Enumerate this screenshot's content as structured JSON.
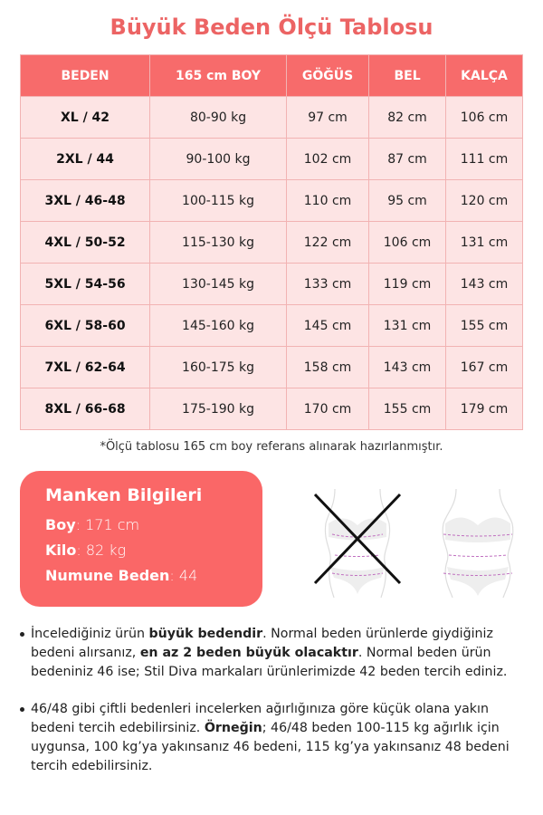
{
  "title": "Büyük Beden Ölçü Tablosu",
  "table": {
    "headers": [
      "BEDEN",
      "165 cm BOY",
      "GÖĞÜS",
      "BEL",
      "KALÇA"
    ],
    "rows": [
      [
        "XL / 42",
        "80-90 kg",
        "97 cm",
        "82 cm",
        "106 cm"
      ],
      [
        "2XL / 44",
        "90-100 kg",
        "102 cm",
        "87 cm",
        "111 cm"
      ],
      [
        "3XL / 46-48",
        "100-115 kg",
        "110 cm",
        "95 cm",
        "120 cm"
      ],
      [
        "4XL / 50-52",
        "115-130 kg",
        "122 cm",
        "106 cm",
        "131 cm"
      ],
      [
        "5XL / 54-56",
        "130-145 kg",
        "133 cm",
        "119 cm",
        "143 cm"
      ],
      [
        "6XL / 58-60",
        "145-160 kg",
        "145 cm",
        "131 cm",
        "155 cm"
      ],
      [
        "7XL / 62-64",
        "160-175 kg",
        "158 cm",
        "143 cm",
        "167 cm"
      ],
      [
        "8XL / 66-68",
        "175-190 kg",
        "170 cm",
        "155 cm",
        "179 cm"
      ]
    ]
  },
  "note": "*Ölçü tablosu 165 cm boy referans alınarak hazırlanmıştır.",
  "model": {
    "title": "Manken Bilgileri",
    "boy_label": "Boy",
    "boy": ": 171 cm",
    "kilo_label": "Kilo",
    "kilo": ": 82 kg",
    "beden_label": "Numune Beden",
    "beden": ": 44"
  },
  "bullets": [
    {
      "parts": [
        [
          "İncelediğiniz ürün ",
          false
        ],
        [
          "büyük bedendir",
          true
        ],
        [
          ". Normal beden ürünlerde giydiğiniz bedeni alırsanız, ",
          false
        ],
        [
          "en az 2 beden büyük olacaktır",
          true
        ],
        [
          ". Normal beden ürün bedeniniz 46 ise; Stil Diva markaları ürünlerimizde 42 beden tercih ediniz.",
          false
        ]
      ]
    },
    {
      "parts": [
        [
          "46/48 gibi çiftli bedenleri incelerken ağırlığınıza göre küçük olana yakın bedeni tercih edebilirsiniz. ",
          false
        ],
        [
          "Örneğin",
          true
        ],
        [
          "; 46/48 beden 100-115 kg ağırlık için uygunsa, 100 kg’ya yakınsanız 46 bedeni, 115 kg’ya yakınsanız 48 bedeni tercih edebilirsiniz.",
          false
        ]
      ]
    }
  ],
  "colors": {
    "accent": "#f76b6b",
    "title": "#ec6464",
    "row": "#fde4e4"
  }
}
